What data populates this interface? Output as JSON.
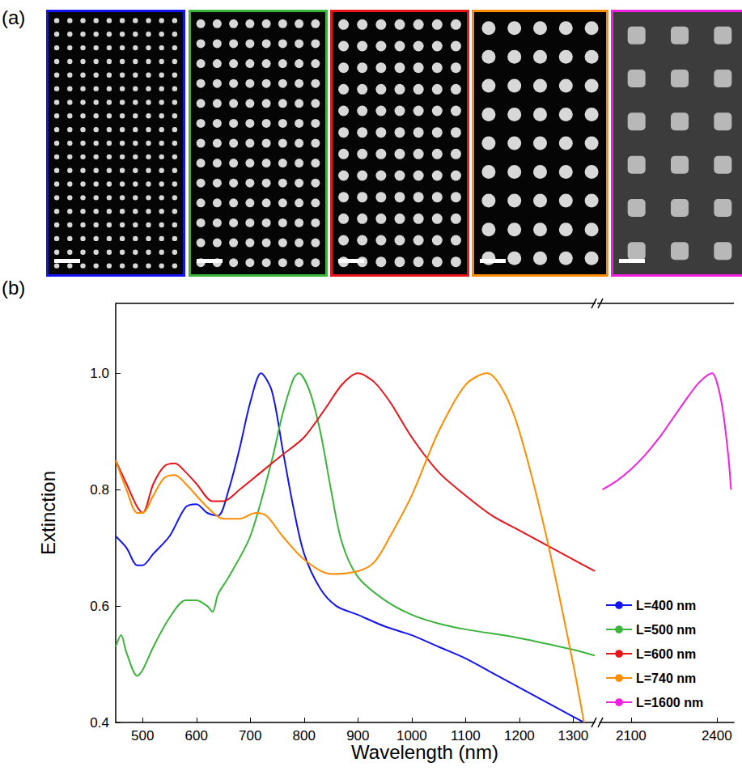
{
  "panel_labels": [
    "(a)",
    "(b)"
  ],
  "chart_data": {
    "type": "line",
    "x_label": "Wavelength (nm)",
    "y_label": "Extinction",
    "xlim": [
      [
        450,
        1340
      ],
      [
        1990,
        2460
      ]
    ],
    "xticks": [
      [
        500,
        600,
        700,
        800,
        900,
        1000,
        1100,
        1200,
        1300
      ],
      [
        2100,
        2400
      ]
    ],
    "ylim": [
      0.4,
      1.12
    ],
    "yticks": [
      0.4,
      0.6,
      0.8,
      {
        "value": 1,
        "label": "1.0"
      }
    ],
    "grid": false,
    "legend": "lower right",
    "series": [
      {
        "name": "L=400 nm",
        "color": "#1414f0",
        "x": [
          450,
          470,
          490,
          500,
          520,
          550,
          580,
          600,
          620,
          640,
          660,
          680,
          700,
          720,
          740,
          760,
          780,
          800,
          830,
          860,
          900,
          950,
          1000,
          1050,
          1100,
          1150,
          1200,
          1250,
          1300,
          1320
        ],
        "values": [
          0.72,
          0.7,
          0.67,
          0.67,
          0.69,
          0.72,
          0.77,
          0.775,
          0.76,
          0.755,
          0.8,
          0.87,
          0.95,
          1.0,
          0.97,
          0.87,
          0.77,
          0.69,
          0.63,
          0.6,
          0.585,
          0.565,
          0.55,
          0.53,
          0.51,
          0.485,
          0.46,
          0.435,
          0.41,
          0.4
        ]
      },
      {
        "name": "L=500 nm",
        "color": "#3cb43c",
        "x": [
          450,
          460,
          470,
          490,
          500,
          520,
          550,
          580,
          600,
          620,
          630,
          640,
          660,
          700,
          740,
          760,
          780,
          790,
          810,
          830,
          850,
          870,
          900,
          950,
          1000,
          1050,
          1100,
          1200,
          1300,
          1340
        ],
        "values": [
          0.53,
          0.55,
          0.52,
          0.48,
          0.49,
          0.53,
          0.58,
          0.61,
          0.61,
          0.6,
          0.59,
          0.62,
          0.65,
          0.72,
          0.85,
          0.93,
          0.99,
          1.0,
          0.97,
          0.9,
          0.8,
          0.71,
          0.65,
          0.61,
          0.585,
          0.57,
          0.56,
          0.545,
          0.525,
          0.515
        ]
      },
      {
        "name": "L=600 nm",
        "color": "#e8141a",
        "x": [
          450,
          470,
          490,
          500,
          520,
          540,
          560,
          580,
          600,
          630,
          650,
          680,
          720,
          760,
          800,
          840,
          870,
          900,
          930,
          960,
          1000,
          1050,
          1100,
          1150,
          1200,
          1250,
          1300,
          1340
        ],
        "values": [
          0.85,
          0.81,
          0.77,
          0.76,
          0.81,
          0.84,
          0.845,
          0.83,
          0.81,
          0.78,
          0.78,
          0.8,
          0.83,
          0.86,
          0.89,
          0.94,
          0.98,
          1.0,
          0.985,
          0.95,
          0.89,
          0.83,
          0.79,
          0.755,
          0.73,
          0.705,
          0.68,
          0.66
        ]
      },
      {
        "name": "L=740 nm",
        "color": "#ff8c00",
        "x": [
          450,
          470,
          490,
          500,
          520,
          540,
          560,
          580,
          620,
          650,
          680,
          710,
          730,
          760,
          800,
          850,
          900,
          930,
          960,
          1000,
          1050,
          1100,
          1140,
          1170,
          1200,
          1250,
          1300,
          1320
        ],
        "values": [
          0.85,
          0.8,
          0.76,
          0.76,
          0.79,
          0.82,
          0.825,
          0.81,
          0.77,
          0.75,
          0.75,
          0.76,
          0.755,
          0.72,
          0.68,
          0.655,
          0.66,
          0.675,
          0.72,
          0.79,
          0.9,
          0.98,
          1.0,
          0.97,
          0.9,
          0.72,
          0.5,
          0.4
        ]
      },
      {
        "name": "L=1600 nm",
        "color": "#f020e0",
        "x": [
          2000,
          2050,
          2100,
          2150,
          2200,
          2250,
          2300,
          2340,
          2384,
          2400,
          2420,
          2440,
          2450
        ],
        "values": [
          0.8,
          0.815,
          0.835,
          0.86,
          0.89,
          0.925,
          0.96,
          0.985,
          1.0,
          0.985,
          0.94,
          0.86,
          0.8
        ]
      }
    ]
  }
}
